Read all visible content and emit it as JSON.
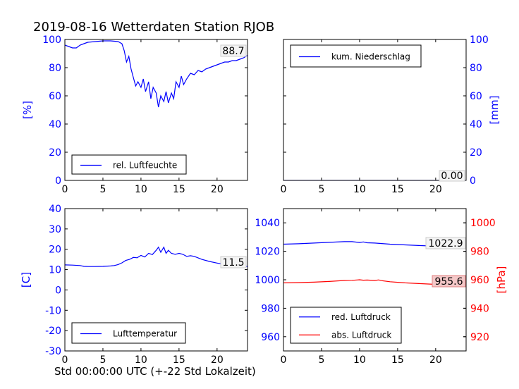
{
  "figure": {
    "title": "2019-08-16 Wetterdaten Station RJOB",
    "xlabel": "Std 00:00:00 UTC (+-22 Std Lokalzeit)"
  },
  "colors": {
    "blue": "#0000ff",
    "red": "#ff0000",
    "black": "#000000"
  },
  "chart_data": [
    {
      "id": "humidity",
      "type": "line",
      "xlim": [
        0,
        24
      ],
      "ylim": [
        0,
        100
      ],
      "xticks": [
        0,
        5,
        10,
        15,
        20
      ],
      "yticks": [
        0,
        20,
        40,
        60,
        80,
        100
      ],
      "ylabel": "[%]",
      "ylabel_color": "#0000ff",
      "ytick_color": "#0000ff",
      "legend": {
        "position": "lower-left"
      },
      "series": [
        {
          "name": "rel. Luftfeuchte",
          "color": "#0000ff",
          "x": [
            0,
            0.5,
            1,
            1.5,
            2,
            2.5,
            3,
            4,
            5,
            6,
            7,
            7.5,
            7.8,
            8.1,
            8.4,
            8.7,
            9,
            9.3,
            9.6,
            10,
            10.3,
            10.6,
            11,
            11.3,
            11.6,
            12,
            12.3,
            12.6,
            13,
            13.3,
            13.6,
            14,
            14.3,
            14.6,
            15,
            15.3,
            15.6,
            16,
            16.5,
            17,
            17.5,
            18,
            18.5,
            19,
            19.5,
            20,
            20.5,
            21,
            21.5,
            22,
            22.5,
            23,
            23.5,
            24
          ],
          "values": [
            96,
            95,
            94,
            94,
            96,
            97,
            98,
            98.5,
            99,
            99,
            98.5,
            97,
            92,
            84,
            88,
            79,
            73,
            67,
            70,
            66,
            72,
            63,
            70,
            58,
            66,
            62,
            52,
            60,
            56,
            63,
            55,
            62,
            58,
            70,
            66,
            74,
            68,
            72,
            76,
            75,
            78,
            77,
            79,
            80,
            81,
            82,
            83,
            84,
            84,
            85,
            85,
            86,
            87,
            88.7
          ]
        }
      ],
      "annotation": "88.7"
    },
    {
      "id": "precipitation",
      "type": "line",
      "xlim": [
        0,
        24
      ],
      "ylim": [
        0,
        100
      ],
      "xticks": [
        0,
        5,
        10,
        15,
        20
      ],
      "yticks": [
        0,
        20,
        40,
        60,
        80,
        100
      ],
      "ylabel": "[mm]",
      "ylabel_color": "#0000ff",
      "ytick_color": "#0000ff",
      "legend": {
        "position": "upper-left"
      },
      "series": [
        {
          "name": "kum. Niederschlag",
          "color": "#0000ff",
          "x": [
            0,
            24
          ],
          "values": [
            0,
            0
          ]
        }
      ],
      "annotation": "0.00"
    },
    {
      "id": "temperature",
      "type": "line",
      "xlim": [
        0,
        24
      ],
      "ylim": [
        -30,
        40
      ],
      "xticks": [
        0,
        5,
        10,
        15,
        20
      ],
      "yticks": [
        -30,
        -20,
        -10,
        0,
        10,
        20,
        30,
        40
      ],
      "ylabel": "[C]",
      "ylabel_color": "#0000ff",
      "ytick_color": "#0000ff",
      "legend": {
        "position": "lower-left"
      },
      "series": [
        {
          "name": "Lufttemperatur",
          "color": "#0000ff",
          "x": [
            0,
            1,
            2,
            2.5,
            3,
            4,
            5,
            6,
            6.5,
            7,
            7.5,
            8,
            8.5,
            9,
            9.5,
            10,
            10.5,
            11,
            11.5,
            12,
            12.3,
            12.6,
            13,
            13.3,
            13.6,
            14,
            14.5,
            15,
            15.5,
            16,
            16.5,
            17,
            18,
            19,
            20,
            21,
            22,
            23,
            24
          ],
          "values": [
            12.3,
            12.2,
            12,
            11.6,
            11.5,
            11.5,
            11.6,
            11.8,
            12,
            12.5,
            13.3,
            14.5,
            15,
            16,
            15.8,
            17,
            16.2,
            18,
            17.4,
            19.5,
            21,
            18.5,
            21,
            18,
            19.5,
            18,
            17.5,
            18,
            17.5,
            16.5,
            16.8,
            16.5,
            15,
            14,
            13.2,
            12.5,
            12,
            11.8,
            11.5
          ]
        }
      ],
      "annotation": "11.5"
    },
    {
      "id": "pressure",
      "type": "line",
      "xlim": [
        0,
        24
      ],
      "ylim": [
        950,
        1050
      ],
      "yticks": [
        960,
        980,
        1000,
        1020,
        1040
      ],
      "ytick_color": "#0000ff",
      "xticks": [
        0,
        5,
        10,
        15,
        20
      ],
      "y2lim": [
        910,
        1010
      ],
      "y2ticks": [
        920,
        940,
        960,
        980,
        1000
      ],
      "y2label": "[hPa]",
      "y2label_color": "#ff0000",
      "y2tick_color": "#ff0000",
      "legend": {
        "position": "lower-left"
      },
      "series": [
        {
          "name": "red. Luftdruck",
          "color": "#0000ff",
          "axis": "left",
          "x": [
            0,
            2,
            4,
            6,
            8,
            9,
            10,
            10.5,
            11,
            12,
            14,
            16,
            18,
            20,
            22,
            24
          ],
          "values": [
            1025,
            1025.3,
            1025.8,
            1026.3,
            1026.8,
            1026.8,
            1026.2,
            1026.6,
            1026,
            1025.8,
            1025,
            1024.5,
            1024,
            1023.6,
            1023.2,
            1022.9
          ]
        },
        {
          "name": "abs. Luftdruck",
          "color": "#ff0000",
          "axis": "right",
          "x": [
            0,
            2,
            4,
            6,
            8,
            9,
            10,
            10.5,
            11,
            12,
            12.5,
            13,
            14,
            16,
            18,
            20,
            22,
            24
          ],
          "values": [
            957.8,
            958,
            958.3,
            958.8,
            959.5,
            959.6,
            960,
            959.7,
            959.8,
            959.5,
            959.9,
            959.3,
            958.6,
            957.8,
            957.3,
            956.8,
            956.4,
            955.6
          ]
        }
      ],
      "annotations": [
        "1022.9",
        "955.6"
      ]
    }
  ]
}
